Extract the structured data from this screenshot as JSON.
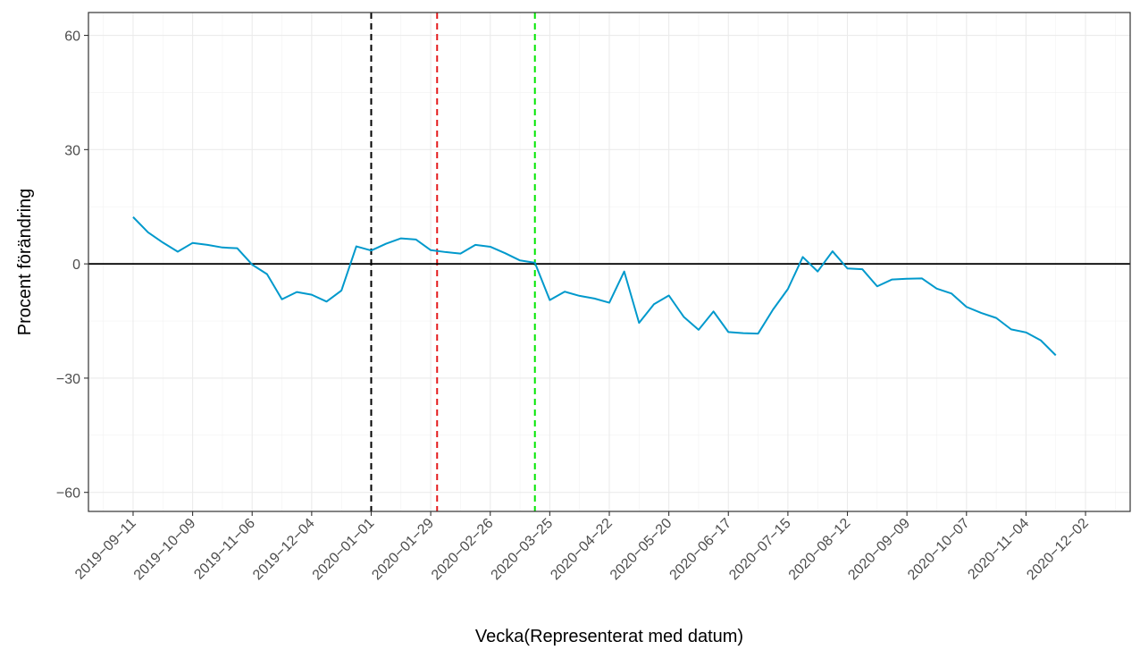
{
  "chart_data": {
    "type": "line",
    "title": "",
    "xlabel": "Vecka(Representerat med datum)",
    "ylabel": "Procent förändring",
    "ylim": [
      -65,
      66
    ],
    "xlim": [
      "2019-08-21",
      "2020-12-23"
    ],
    "yticks": [
      -60,
      -30,
      0,
      30,
      60
    ],
    "ytick_labels": [
      "−60",
      "−30",
      "0",
      "30",
      "60"
    ],
    "xticks": [
      "2019-09-11",
      "2019-10-09",
      "2019-11-06",
      "2019-12-04",
      "2020-01-01",
      "2020-01-29",
      "2020-02-26",
      "2020-03-25",
      "2020-04-22",
      "2020-05-20",
      "2020-06-17",
      "2020-07-15",
      "2020-08-12",
      "2020-09-09",
      "2020-10-07",
      "2020-11-04",
      "2020-12-02"
    ],
    "xtick_labels": [
      "2019−09−11",
      "2019−10−09",
      "2019−11−06",
      "2019−12−04",
      "2020−01−01",
      "2020−01−29",
      "2020−02−26",
      "2020−03−25",
      "2020−04−22",
      "2020−05−20",
      "2020−06−17",
      "2020−07−15",
      "2020−08−12",
      "2020−09−09",
      "2020−10−07",
      "2020−11−04",
      "2020−12−02"
    ],
    "grid": true,
    "hline": 0,
    "vlines": [
      {
        "x": "2020-01-01",
        "color": "#000000",
        "style": "dashed"
      },
      {
        "x": "2020-02-01",
        "color": "#e41a1c",
        "style": "dashed"
      },
      {
        "x": "2020-03-18",
        "color": "#00e600",
        "style": "dashed"
      }
    ],
    "series": [
      {
        "color": "#0099cc",
        "points": [
          {
            "x": "2019-09-11",
            "y": 12.3
          },
          {
            "x": "2019-09-18",
            "y": 8.3
          },
          {
            "x": "2019-09-25",
            "y": 5.6
          },
          {
            "x": "2019-10-02",
            "y": 3.2
          },
          {
            "x": "2019-10-09",
            "y": 5.5
          },
          {
            "x": "2019-10-16",
            "y": 5.0
          },
          {
            "x": "2019-10-23",
            "y": 4.3
          },
          {
            "x": "2019-10-30",
            "y": 4.1
          },
          {
            "x": "2019-11-06",
            "y": -0.2
          },
          {
            "x": "2019-11-13",
            "y": -2.7
          },
          {
            "x": "2019-11-20",
            "y": -9.3
          },
          {
            "x": "2019-11-27",
            "y": -7.4
          },
          {
            "x": "2019-12-04",
            "y": -8.1
          },
          {
            "x": "2019-12-11",
            "y": -9.9
          },
          {
            "x": "2019-12-18",
            "y": -7.0
          },
          {
            "x": "2019-12-25",
            "y": 4.6
          },
          {
            "x": "2020-01-01",
            "y": 3.5
          },
          {
            "x": "2020-01-08",
            "y": 5.3
          },
          {
            "x": "2020-01-15",
            "y": 6.7
          },
          {
            "x": "2020-01-22",
            "y": 6.4
          },
          {
            "x": "2020-01-29",
            "y": 3.6
          },
          {
            "x": "2020-02-05",
            "y": 3.1
          },
          {
            "x": "2020-02-12",
            "y": 2.7
          },
          {
            "x": "2020-02-19",
            "y": 5.0
          },
          {
            "x": "2020-02-26",
            "y": 4.5
          },
          {
            "x": "2020-03-04",
            "y": 2.8
          },
          {
            "x": "2020-03-11",
            "y": 0.9
          },
          {
            "x": "2020-03-18",
            "y": 0.3
          },
          {
            "x": "2020-03-25",
            "y": -9.5
          },
          {
            "x": "2020-04-01",
            "y": -7.3
          },
          {
            "x": "2020-04-08",
            "y": -8.4
          },
          {
            "x": "2020-04-15",
            "y": -9.1
          },
          {
            "x": "2020-04-22",
            "y": -10.2
          },
          {
            "x": "2020-04-29",
            "y": -2.0
          },
          {
            "x": "2020-05-06",
            "y": -15.5
          },
          {
            "x": "2020-05-13",
            "y": -10.6
          },
          {
            "x": "2020-05-20",
            "y": -8.3
          },
          {
            "x": "2020-05-27",
            "y": -13.9
          },
          {
            "x": "2020-06-03",
            "y": -17.3
          },
          {
            "x": "2020-06-10",
            "y": -12.5
          },
          {
            "x": "2020-06-17",
            "y": -17.9
          },
          {
            "x": "2020-06-24",
            "y": -18.2
          },
          {
            "x": "2020-07-01",
            "y": -18.3
          },
          {
            "x": "2020-07-08",
            "y": -12.0
          },
          {
            "x": "2020-07-15",
            "y": -6.6
          },
          {
            "x": "2020-07-22",
            "y": 1.8
          },
          {
            "x": "2020-07-29",
            "y": -2.0
          },
          {
            "x": "2020-08-05",
            "y": 3.3
          },
          {
            "x": "2020-08-12",
            "y": -1.2
          },
          {
            "x": "2020-08-19",
            "y": -1.4
          },
          {
            "x": "2020-08-26",
            "y": -5.9
          },
          {
            "x": "2020-09-02",
            "y": -4.1
          },
          {
            "x": "2020-09-09",
            "y": -3.9
          },
          {
            "x": "2020-09-16",
            "y": -3.8
          },
          {
            "x": "2020-09-23",
            "y": -6.5
          },
          {
            "x": "2020-09-30",
            "y": -7.8
          },
          {
            "x": "2020-10-07",
            "y": -11.3
          },
          {
            "x": "2020-10-14",
            "y": -12.9
          },
          {
            "x": "2020-10-21",
            "y": -14.2
          },
          {
            "x": "2020-10-28",
            "y": -17.2
          },
          {
            "x": "2020-11-04",
            "y": -18.0
          },
          {
            "x": "2020-11-11",
            "y": -20.1
          },
          {
            "x": "2020-11-18",
            "y": -24.0
          }
        ]
      }
    ]
  }
}
